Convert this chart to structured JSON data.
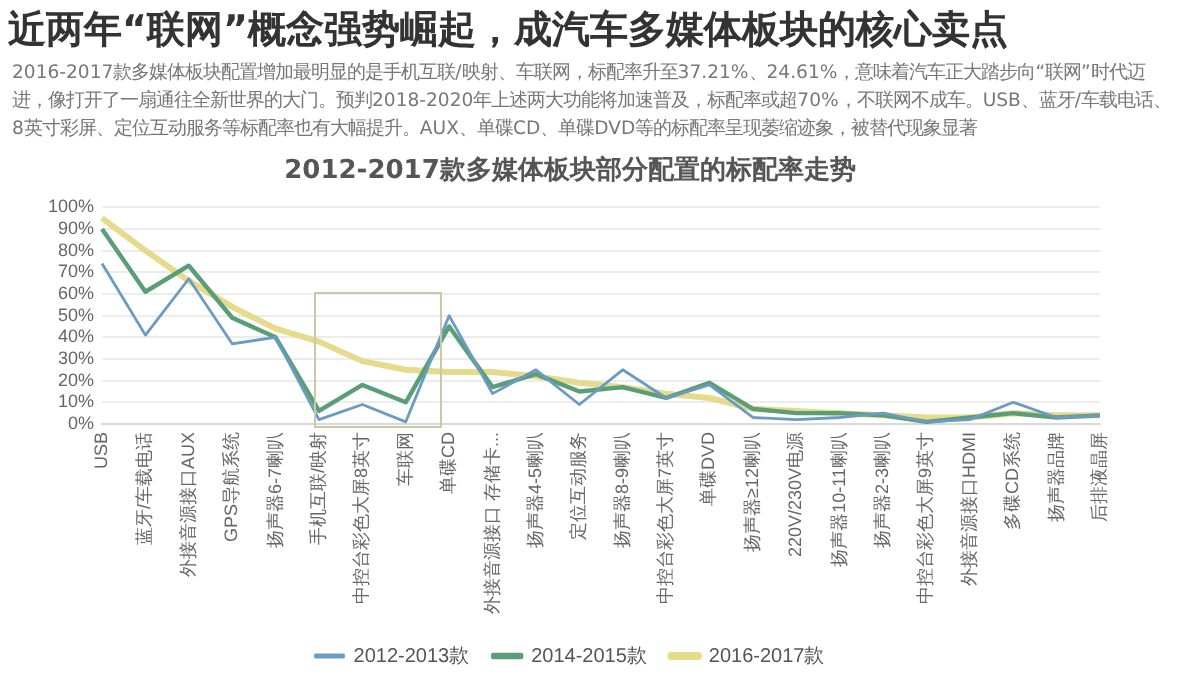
{
  "chart_data": {
    "type": "line",
    "title": "近两年“联网”概念强势崛起，成汽车多媒体板块的核心卖点",
    "subtitle": "2016-2017款多媒体板块配置增加最明显的是手机互联/映射、车联网，标配率升至37.21%、24.61%，意味着汽车正大踏步向“联网”时代迈进，像打开了一扇通往全新世界的大门。预判2018-2020年上述两大功能将加速普及，标配率或超70%，不联网不成车。USB、蓝牙/车载电话、8英寸彩屏、定位互动服务等标配率也有大幅提升。AUX、单碟CD、单碟DVD等的标配率呈现萎缩迹象，被替代现象显著",
    "annotations": [
      "2012-2017款多媒体板块部分配置的标配率走势"
    ],
    "categories": [
      "USB",
      "蓝牙/车载电话",
      "外接音源接口AUX",
      "GPS导航系统",
      "扬声器6-7喇叭",
      "手机互联/映射",
      "中控台彩色大屏8英寸",
      "车联网",
      "单碟CD",
      "外接音源接口 存储卡...",
      "扬声器4-5喇叭",
      "定位互动服务",
      "扬声器8-9喇叭",
      "中控台彩色大屏7英寸",
      "单碟DVD",
      "扬声器≥12喇叭",
      "220V/230V电源",
      "扬声器10-11喇叭",
      "扬声器2-3喇叭",
      "中控台彩色大屏9英寸",
      "外接音源接口HDMI",
      "多碟CD系统",
      "扬声器品牌",
      "后排液晶屏"
    ],
    "series": [
      {
        "name": "2012-2013款",
        "color": "#6b9bc3",
        "values": [
          74,
          41,
          67,
          37,
          40,
          2,
          9,
          1,
          50,
          14,
          25,
          9,
          25,
          12,
          18,
          3,
          2,
          3,
          5,
          1,
          2,
          10,
          3,
          4
        ]
      },
      {
        "name": "2014-2015款",
        "color": "#5a9e78",
        "values": [
          90,
          61,
          73,
          49,
          40,
          6,
          18,
          10,
          45,
          17,
          23,
          15,
          17,
          12,
          19,
          7,
          5,
          5,
          4,
          1,
          3,
          5,
          3,
          4
        ]
      },
      {
        "name": "2016-2017款",
        "color": "#e6da8c",
        "values": [
          95,
          80,
          66,
          54,
          44,
          38,
          29,
          25,
          24,
          24,
          22,
          19,
          17,
          14,
          12,
          7,
          6,
          5,
          4,
          3,
          3,
          5,
          4,
          4
        ]
      }
    ],
    "ylim": [
      0,
      100
    ],
    "yticks": [
      {
        "value": 0,
        "label": "0%"
      },
      {
        "value": 10,
        "label": "10%"
      },
      {
        "value": 20,
        "label": "20%"
      },
      {
        "value": 30,
        "label": "30%"
      },
      {
        "value": 40,
        "label": "40%"
      },
      {
        "value": 50,
        "label": "50%"
      },
      {
        "value": 60,
        "label": "60%"
      },
      {
        "value": 70,
        "label": "70%"
      },
      {
        "value": 80,
        "label": "80%"
      },
      {
        "value": 90,
        "label": "90%"
      },
      {
        "value": 100,
        "label": "100%"
      }
    ],
    "grid": "y",
    "legend": "bottom",
    "marker": "none",
    "line_style": "solid"
  }
}
